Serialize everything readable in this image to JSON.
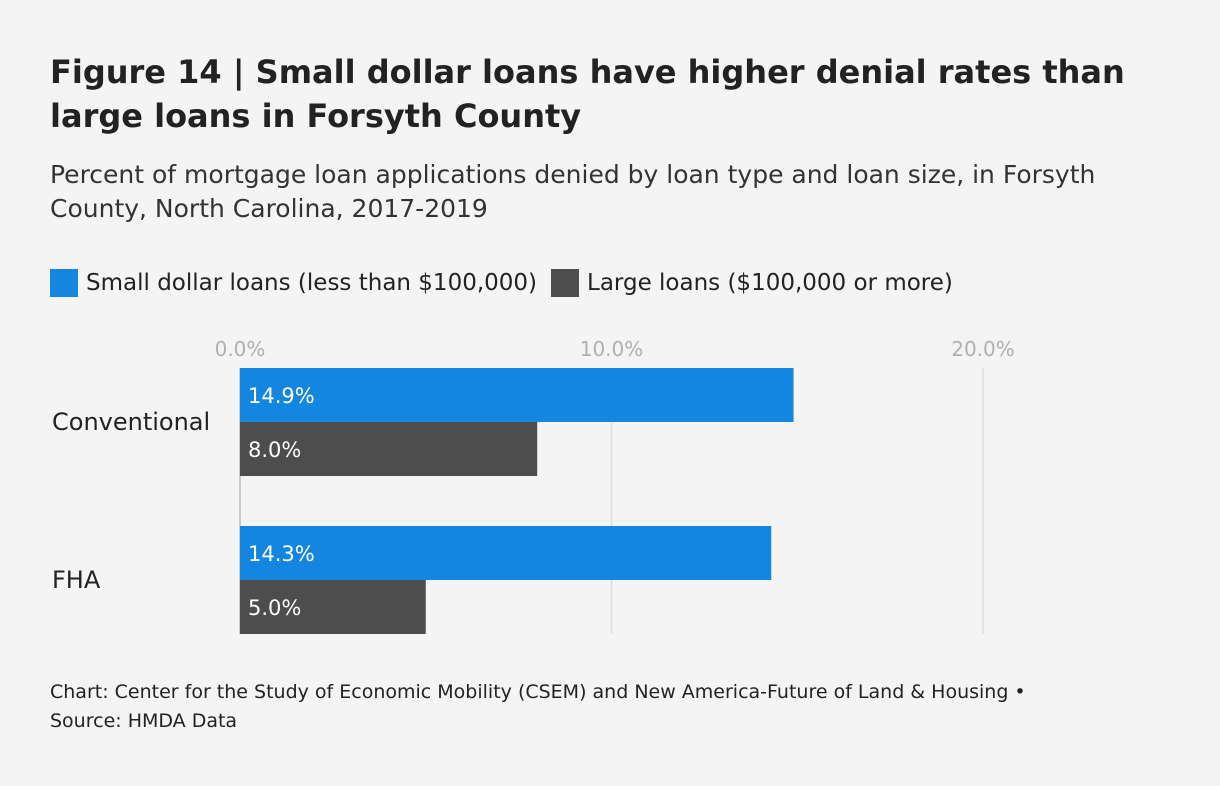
{
  "title": "Figure 14 | Small dollar loans have higher denial rates than large loans in Forsyth County",
  "subtitle": "Percent of mortgage loan applications denied by loan type and loan size, in Forsyth County, North Carolina, 2017-2019",
  "legend": [
    {
      "label": "Small dollar loans (less than $100,000)",
      "color": "#1486e0"
    },
    {
      "label": "Large loans ($100,000 or more)",
      "color": "#4d4d4d"
    }
  ],
  "footer": {
    "line1": "Chart: Center for the Study of Economic Mobility (CSEM) and New America-Future of Land & Housing •",
    "line2": "Source: HMDA Data"
  },
  "chart_data": {
    "type": "bar",
    "orientation": "horizontal",
    "categories": [
      "Conventional",
      "FHA"
    ],
    "series": [
      {
        "name": "Small dollar loans (less than $100,000)",
        "values": [
          14.9,
          14.3
        ],
        "labels": [
          "14.9%",
          "14.3%"
        ],
        "color": "#1486e0"
      },
      {
        "name": "Large loans ($100,000 or more)",
        "values": [
          8.0,
          5.0
        ],
        "labels": [
          "8.0%",
          "5.0%"
        ],
        "color": "#4d4d4d"
      }
    ],
    "xlim": [
      0,
      20
    ],
    "ticks": [
      0,
      10,
      20
    ],
    "tick_labels": [
      "0.0%",
      "10.0%",
      "20.0%"
    ],
    "xlabel": "",
    "ylabel": "",
    "grid": true,
    "legend_position": "top-left"
  }
}
